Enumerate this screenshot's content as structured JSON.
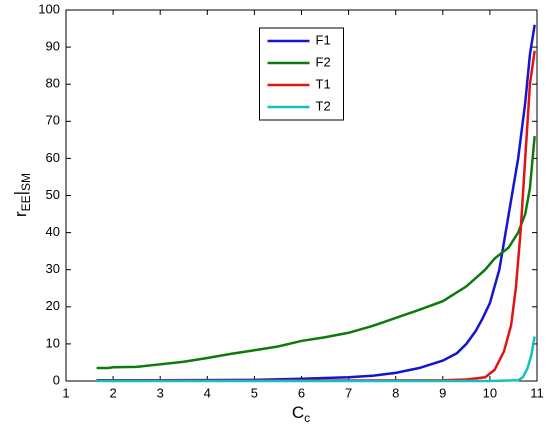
{
  "chart_data": {
    "type": "line",
    "xlabel": [
      "C",
      "c"
    ],
    "ylabel": [
      "r",
      "EE",
      "|",
      "SM"
    ],
    "xlim": [
      1,
      11
    ],
    "xticks": [
      1,
      2,
      3,
      4,
      5,
      6,
      7,
      8,
      9,
      10,
      11
    ],
    "ylim": [
      0,
      100
    ],
    "yticks": [
      0,
      10,
      20,
      30,
      40,
      50,
      60,
      70,
      80,
      90,
      100
    ],
    "legend": "upper center",
    "series": [
      {
        "name": "F1",
        "color": "#1414d2",
        "x": [
          1.65,
          3,
          5,
          6,
          7,
          7.5,
          8,
          8.5,
          9,
          9.3,
          9.5,
          9.7,
          9.85,
          10,
          10.2,
          10.4,
          10.6,
          10.75,
          10.85,
          10.95
        ],
        "values": [
          0.2,
          0.2,
          0.3,
          0.6,
          1,
          1.4,
          2.2,
          3.5,
          5.5,
          7.5,
          10,
          13.5,
          17,
          21,
          30,
          45,
          60,
          75,
          88,
          96
        ]
      },
      {
        "name": "F2",
        "color": "#0c7a0c",
        "x": [
          1.65,
          1.9,
          2,
          2.5,
          3,
          3.5,
          4,
          4.5,
          5,
          5.5,
          6,
          6.5,
          7,
          7.5,
          8,
          8.5,
          9,
          9.5,
          9.9,
          10.1,
          10.4,
          10.6,
          10.75,
          10.85,
          10.95
        ],
        "values": [
          3.5,
          3.5,
          3.7,
          3.8,
          4.5,
          5.2,
          6.2,
          7.3,
          8.3,
          9.3,
          10.8,
          11.8,
          13,
          14.8,
          17,
          19.2,
          21.5,
          25.5,
          30,
          33,
          36,
          40,
          45,
          52,
          66
        ]
      },
      {
        "name": "T1",
        "color": "#e01414",
        "x": [
          1.65,
          5,
          9,
          9.5,
          9.9,
          10.1,
          10.3,
          10.45,
          10.55,
          10.65,
          10.75,
          10.85,
          10.95
        ],
        "values": [
          0.1,
          0.1,
          0.2,
          0.4,
          1,
          3,
          8,
          15,
          25,
          40,
          60,
          80,
          89
        ]
      },
      {
        "name": "T2",
        "color": "#12c0c0",
        "x": [
          1.65,
          5,
          10,
          10.6,
          10.7,
          10.8,
          10.88,
          10.95
        ],
        "values": [
          0,
          0,
          0,
          0.2,
          1,
          3.5,
          7,
          12
        ]
      }
    ]
  }
}
